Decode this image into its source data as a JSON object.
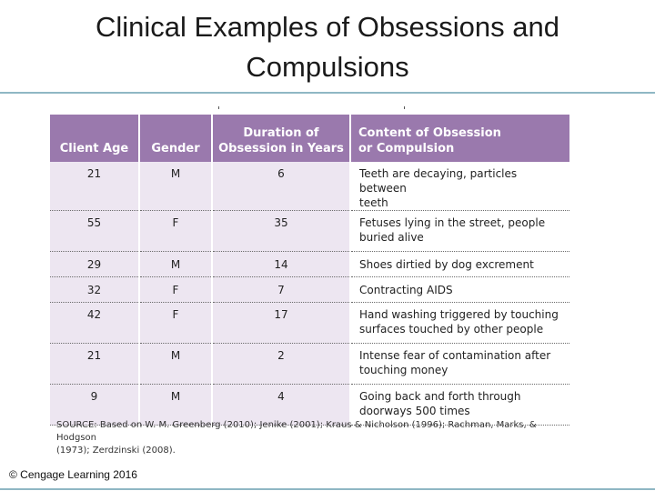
{
  "slide": {
    "title_line1": "Clinical Examples of Obsessions and",
    "title_line2": "Compulsions"
  },
  "table": {
    "headers": {
      "age": "Client Age",
      "gender": "Gender",
      "duration_line1": "Duration of",
      "duration_line2": "Obsession in Years",
      "content_line1": "Content of Obsession",
      "content_line2": "or Compulsion"
    },
    "rows": [
      {
        "age": "21",
        "gender": "M",
        "duration": "6",
        "content_line1": "Teeth are decaying, particles between",
        "content_line2": "teeth"
      },
      {
        "age": "55",
        "gender": "F",
        "duration": "35",
        "content_line1": "Fetuses lying in the street, people",
        "content_line2": "buried alive"
      },
      {
        "age": "29",
        "gender": "M",
        "duration": "14",
        "content_line1": "Shoes dirtied by dog excrement",
        "content_line2": ""
      },
      {
        "age": "32",
        "gender": "F",
        "duration": "7",
        "content_line1": "Contracting AIDS",
        "content_line2": ""
      },
      {
        "age": "42",
        "gender": "F",
        "duration": "17",
        "content_line1": "Hand washing triggered by touching",
        "content_line2": "surfaces touched by other people"
      },
      {
        "age": "21",
        "gender": "M",
        "duration": "2",
        "content_line1": "Intense fear of contamination after",
        "content_line2": "touching money"
      },
      {
        "age": "9",
        "gender": "M",
        "duration": "4",
        "content_line1": "Going back and forth through",
        "content_line2": "doorways 500 times"
      }
    ]
  },
  "source_line1": "SOURCE: Based on W. M. Greenberg (2010); Jenike (2001); Kraus & Nicholson (1996); Rachman, Marks, & Hodgson",
  "source_line2": "(1973); Zerdzinski (2008).",
  "copyright": "© Cengage Learning 2016",
  "colors": {
    "header_bg": "#9a79ad",
    "cell_tint": "#ede6f1",
    "rule": "#8fb7c4"
  }
}
